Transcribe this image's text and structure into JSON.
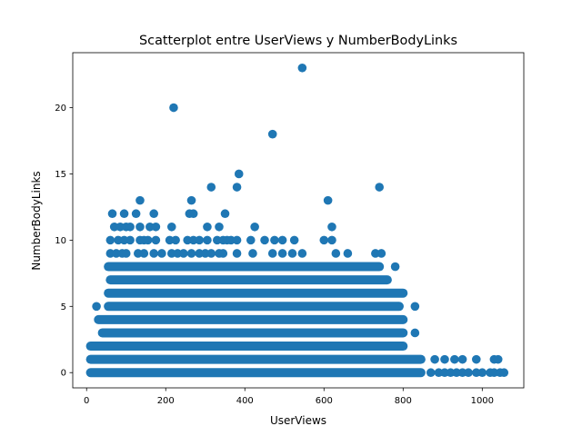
{
  "chart_data": {
    "type": "scatter",
    "title": "Scatterplot entre UserViews y NumberBodyLinks",
    "xlabel": "UserViews",
    "ylabel": "NumberBodyLinks",
    "xlim": [
      -35,
      1105
    ],
    "ylim": [
      -1.15,
      24.15
    ],
    "xticks": [
      0,
      200,
      400,
      600,
      800,
      1000
    ],
    "yticks": [
      0,
      5,
      10,
      15,
      20
    ],
    "grid": false,
    "legend": "none",
    "series": [
      {
        "color": "#1f77b4",
        "bands": [
          {
            "y": 0,
            "x_from": 10,
            "x_to": 845
          },
          {
            "y": 1,
            "x_from": 10,
            "x_to": 845
          },
          {
            "y": 2,
            "x_from": 10,
            "x_to": 800
          },
          {
            "y": 3,
            "x_from": 40,
            "x_to": 800
          },
          {
            "y": 4,
            "x_from": 30,
            "x_to": 800
          },
          {
            "y": 5,
            "x_from": 55,
            "x_to": 790
          },
          {
            "y": 6,
            "x_from": 55,
            "x_to": 800
          },
          {
            "y": 7,
            "x_from": 60,
            "x_to": 760
          },
          {
            "y": 8,
            "x_from": 55,
            "x_to": 740
          }
        ],
        "points": [
          {
            "x": 870,
            "y": 0
          },
          {
            "x": 890,
            "y": 0
          },
          {
            "x": 905,
            "y": 0
          },
          {
            "x": 920,
            "y": 0
          },
          {
            "x": 935,
            "y": 0
          },
          {
            "x": 950,
            "y": 0
          },
          {
            "x": 965,
            "y": 0
          },
          {
            "x": 985,
            "y": 0
          },
          {
            "x": 1000,
            "y": 0
          },
          {
            "x": 1020,
            "y": 0
          },
          {
            "x": 1030,
            "y": 0
          },
          {
            "x": 1045,
            "y": 0
          },
          {
            "x": 1055,
            "y": 0
          },
          {
            "x": 880,
            "y": 1
          },
          {
            "x": 905,
            "y": 1
          },
          {
            "x": 930,
            "y": 1
          },
          {
            "x": 950,
            "y": 1
          },
          {
            "x": 985,
            "y": 1
          },
          {
            "x": 1030,
            "y": 1
          },
          {
            "x": 1040,
            "y": 1
          },
          {
            "x": 25,
            "y": 5
          },
          {
            "x": 830,
            "y": 5
          },
          {
            "x": 830,
            "y": 3
          },
          {
            "x": 780,
            "y": 8
          },
          {
            "x": 60,
            "y": 9
          },
          {
            "x": 75,
            "y": 9
          },
          {
            "x": 90,
            "y": 9
          },
          {
            "x": 100,
            "y": 9
          },
          {
            "x": 130,
            "y": 9
          },
          {
            "x": 145,
            "y": 9
          },
          {
            "x": 170,
            "y": 9
          },
          {
            "x": 190,
            "y": 9
          },
          {
            "x": 215,
            "y": 9
          },
          {
            "x": 230,
            "y": 9
          },
          {
            "x": 245,
            "y": 9
          },
          {
            "x": 265,
            "y": 9
          },
          {
            "x": 285,
            "y": 9
          },
          {
            "x": 300,
            "y": 9
          },
          {
            "x": 315,
            "y": 9
          },
          {
            "x": 335,
            "y": 9
          },
          {
            "x": 345,
            "y": 9
          },
          {
            "x": 380,
            "y": 9
          },
          {
            "x": 420,
            "y": 9
          },
          {
            "x": 470,
            "y": 9
          },
          {
            "x": 495,
            "y": 9
          },
          {
            "x": 520,
            "y": 9
          },
          {
            "x": 545,
            "y": 9
          },
          {
            "x": 630,
            "y": 9
          },
          {
            "x": 660,
            "y": 9
          },
          {
            "x": 730,
            "y": 9
          },
          {
            "x": 745,
            "y": 9
          },
          {
            "x": 60,
            "y": 10
          },
          {
            "x": 80,
            "y": 10
          },
          {
            "x": 95,
            "y": 10
          },
          {
            "x": 110,
            "y": 10
          },
          {
            "x": 135,
            "y": 10
          },
          {
            "x": 145,
            "y": 10
          },
          {
            "x": 155,
            "y": 10
          },
          {
            "x": 175,
            "y": 10
          },
          {
            "x": 210,
            "y": 10
          },
          {
            "x": 225,
            "y": 10
          },
          {
            "x": 255,
            "y": 10
          },
          {
            "x": 270,
            "y": 10
          },
          {
            "x": 285,
            "y": 10
          },
          {
            "x": 305,
            "y": 10
          },
          {
            "x": 330,
            "y": 10
          },
          {
            "x": 345,
            "y": 10
          },
          {
            "x": 355,
            "y": 10
          },
          {
            "x": 365,
            "y": 10
          },
          {
            "x": 380,
            "y": 10
          },
          {
            "x": 415,
            "y": 10
          },
          {
            "x": 450,
            "y": 10
          },
          {
            "x": 475,
            "y": 10
          },
          {
            "x": 495,
            "y": 10
          },
          {
            "x": 525,
            "y": 10
          },
          {
            "x": 600,
            "y": 10
          },
          {
            "x": 620,
            "y": 10
          },
          {
            "x": 70,
            "y": 11
          },
          {
            "x": 85,
            "y": 11
          },
          {
            "x": 100,
            "y": 11
          },
          {
            "x": 110,
            "y": 11
          },
          {
            "x": 135,
            "y": 11
          },
          {
            "x": 160,
            "y": 11
          },
          {
            "x": 175,
            "y": 11
          },
          {
            "x": 215,
            "y": 11
          },
          {
            "x": 305,
            "y": 11
          },
          {
            "x": 335,
            "y": 11
          },
          {
            "x": 425,
            "y": 11
          },
          {
            "x": 620,
            "y": 11
          },
          {
            "x": 65,
            "y": 12
          },
          {
            "x": 95,
            "y": 12
          },
          {
            "x": 125,
            "y": 12
          },
          {
            "x": 170,
            "y": 12
          },
          {
            "x": 260,
            "y": 12
          },
          {
            "x": 270,
            "y": 12
          },
          {
            "x": 350,
            "y": 12
          },
          {
            "x": 135,
            "y": 13
          },
          {
            "x": 265,
            "y": 13
          },
          {
            "x": 610,
            "y": 13
          },
          {
            "x": 315,
            "y": 14
          },
          {
            "x": 380,
            "y": 14
          },
          {
            "x": 740,
            "y": 14
          },
          {
            "x": 385,
            "y": 15
          },
          {
            "x": 470,
            "y": 18
          },
          {
            "x": 220,
            "y": 20
          },
          {
            "x": 545,
            "y": 23
          }
        ]
      }
    ]
  }
}
